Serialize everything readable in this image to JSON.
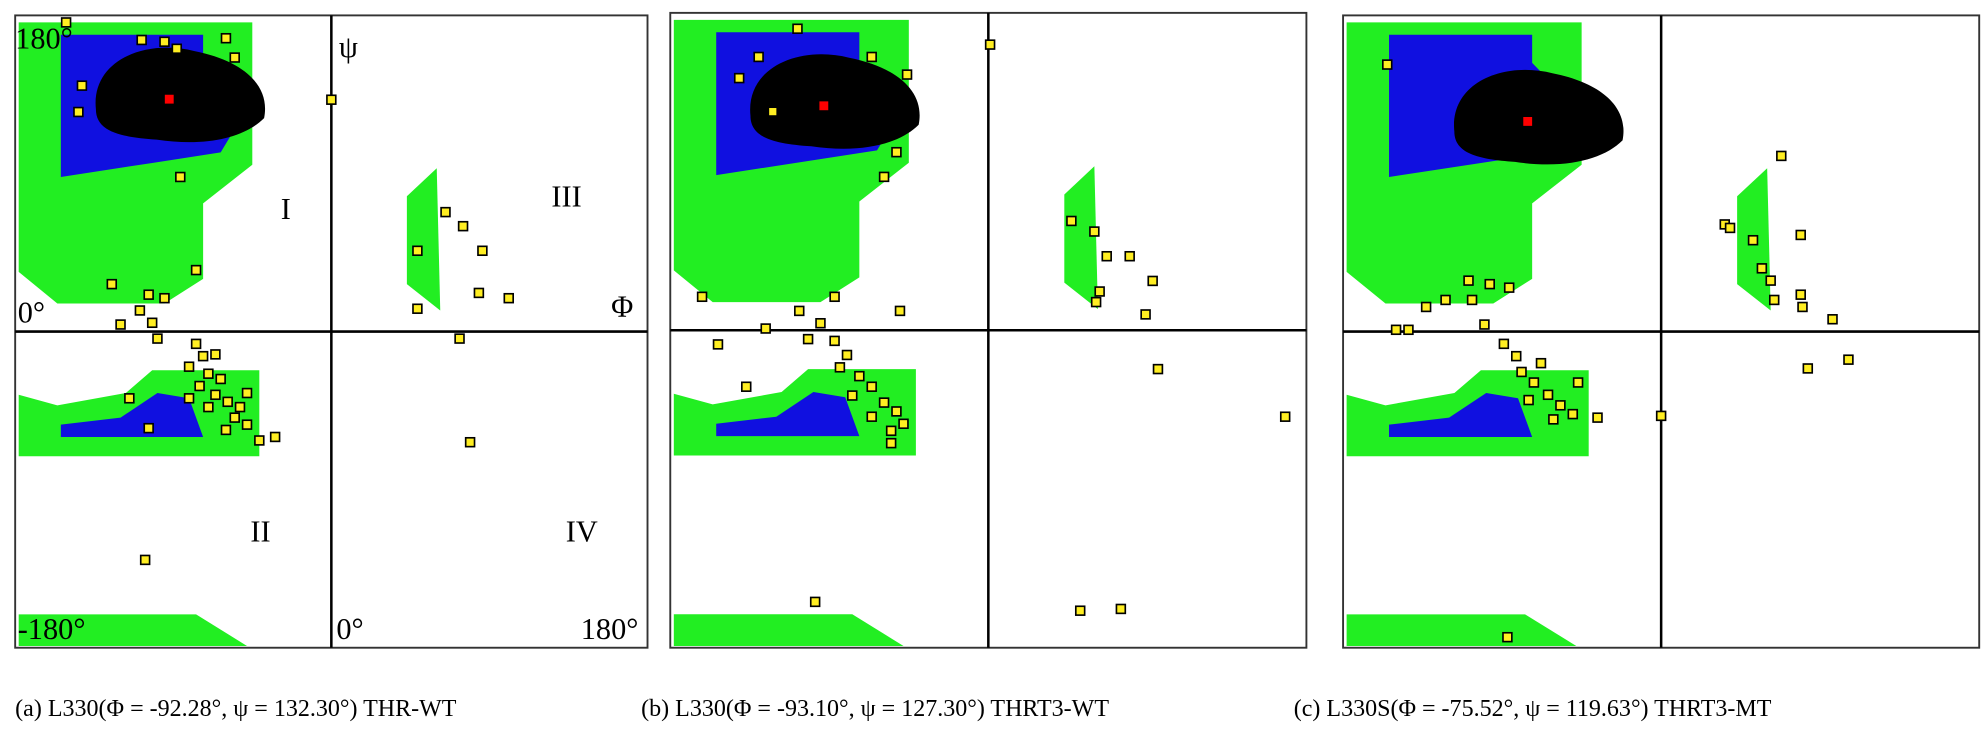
{
  "chart_data": [
    {
      "type": "scatter",
      "caption": "(a) L330(Φ = -92.28°, ψ = 132.30°) THR-WT",
      "annotations": [
        "180°",
        "ψ",
        "I",
        "III",
        "0°",
        "Φ",
        "II",
        "IV",
        "-180°",
        "0°",
        "180°"
      ],
      "xlim": [
        -180,
        180
      ],
      "ylim": [
        -180,
        180
      ],
      "highlight": {
        "x": -92.28,
        "y": 132.3,
        "color": "#ff0000"
      },
      "color": "#ffee22",
      "x": [
        -151,
        -142,
        -144,
        -108,
        -95,
        -88,
        -60,
        -55,
        -86,
        0,
        -125,
        -77,
        -104,
        -95,
        -109,
        -102,
        -120,
        -99,
        49,
        65,
        75,
        86,
        84,
        101,
        49,
        73,
        79,
        -106,
        -77,
        -73,
        -81,
        -70,
        -63,
        -75,
        -66,
        -59,
        -52,
        -70,
        -55,
        -48,
        -60,
        -41,
        -32,
        -104,
        -115,
        -66,
        -48,
        -81
      ],
      "y": [
        176,
        140,
        125,
        166,
        165,
        161,
        167,
        156,
        88,
        132,
        27,
        35,
        21,
        19,
        12,
        5,
        4,
        -4,
        46,
        68,
        60,
        46,
        22,
        19,
        13,
        -4,
        -63,
        -130,
        -7,
        -14,
        -20,
        -24,
        -27,
        -31,
        -36,
        -40,
        -43,
        -43,
        -49,
        -53,
        -56,
        -62,
        -60,
        -55,
        -38,
        -13,
        -35,
        -38
      ]
    },
    {
      "type": "scatter",
      "caption": "(b) L330(Φ = -93.10°, ψ = 127.30°) THRT3-WT",
      "xlim": [
        -180,
        180
      ],
      "ylim": [
        -180,
        180
      ],
      "highlight": {
        "x": -93.1,
        "y": 127.3,
        "color": "#ff0000"
      },
      "color": "#ffee22",
      "x": [
        1,
        -108,
        -130,
        -141,
        -122,
        -66,
        -46,
        -52,
        -59,
        -162,
        -153,
        -137,
        -126,
        -107,
        -87,
        -50,
        47,
        60,
        67,
        80,
        93,
        63,
        61,
        89,
        96,
        168,
        -98,
        52,
        75,
        -87,
        -80,
        -84,
        -73,
        -66,
        -77,
        -59,
        -52,
        -66,
        -55,
        -48,
        -55,
        -95,
        -102
      ],
      "y": [
        162,
        171,
        155,
        143,
        124,
        155,
        145,
        101,
        87,
        19,
        -8,
        -32,
        1,
        11,
        19,
        11,
        62,
        56,
        42,
        42,
        28,
        22,
        16,
        9,
        -22,
        -49,
        -154,
        -159,
        -158,
        -6,
        -14,
        -21,
        -26,
        -32,
        -37,
        -41,
        -46,
        -49,
        -57,
        -53,
        -64,
        4,
        -5
      ]
    },
    {
      "type": "scatter",
      "caption": "(c) L330S(Φ = -75.52°, ψ = 119.63°) THRT3-MT",
      "xlim": [
        -180,
        180
      ],
      "ylim": [
        -180,
        180
      ],
      "highlight": {
        "x": -75.52,
        "y": 119.63,
        "color": "#ff0000"
      },
      "color": "#ffee22",
      "x": [
        -155,
        68,
        36,
        39,
        52,
        79,
        57,
        62,
        79,
        64,
        80,
        97,
        83,
        106,
        0,
        -87,
        -150,
        -143,
        -133,
        -122,
        -109,
        -97,
        -86,
        -107,
        -100,
        -89,
        -82,
        -79,
        -72,
        -64,
        -75,
        -57,
        -50,
        -61,
        -36,
        -47,
        -68
      ],
      "y": [
        152,
        100,
        61,
        59,
        52,
        55,
        36,
        29,
        21,
        18,
        14,
        7,
        -21,
        -16,
        -48,
        -174,
        1,
        1,
        14,
        18,
        29,
        27,
        25,
        18,
        4,
        -7,
        -14,
        -23,
        -29,
        -36,
        -39,
        -42,
        -47,
        -50,
        -49,
        -29,
        -18
      ]
    }
  ]
}
